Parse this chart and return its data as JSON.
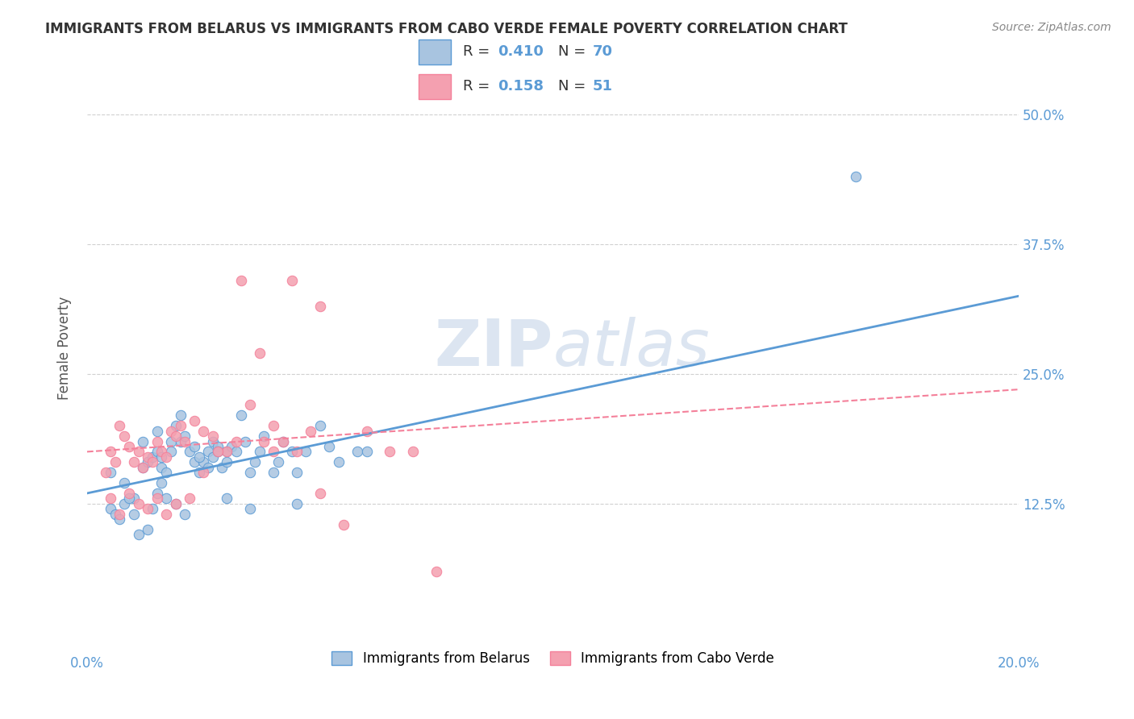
{
  "title": "IMMIGRANTS FROM BELARUS VS IMMIGRANTS FROM CABO VERDE FEMALE POVERTY CORRELATION CHART",
  "source": "Source: ZipAtlas.com",
  "ylabel": "Female Poverty",
  "ytick_labels": [
    "12.5%",
    "25.0%",
    "37.5%",
    "50.0%"
  ],
  "ytick_values": [
    0.125,
    0.25,
    0.375,
    0.5
  ],
  "xlim": [
    0.0,
    0.2
  ],
  "ylim": [
    0.0,
    0.55
  ],
  "legend_entries": [
    {
      "label": "Immigrants from Belarus",
      "R": "0.410",
      "N": "70"
    },
    {
      "label": "Immigrants from Cabo Verde",
      "R": "0.158",
      "N": "51"
    }
  ],
  "blue_scatter_x": [
    0.005,
    0.008,
    0.01,
    0.012,
    0.012,
    0.013,
    0.014,
    0.015,
    0.015,
    0.016,
    0.016,
    0.016,
    0.017,
    0.018,
    0.018,
    0.019,
    0.02,
    0.02,
    0.021,
    0.022,
    0.023,
    0.023,
    0.024,
    0.025,
    0.026,
    0.027,
    0.027,
    0.028,
    0.029,
    0.03,
    0.03,
    0.031,
    0.032,
    0.033,
    0.034,
    0.035,
    0.036,
    0.037,
    0.038,
    0.04,
    0.041,
    0.042,
    0.044,
    0.045,
    0.047,
    0.05,
    0.052,
    0.054,
    0.058,
    0.06,
    0.005,
    0.006,
    0.007,
    0.008,
    0.009,
    0.01,
    0.011,
    0.013,
    0.014,
    0.015,
    0.017,
    0.019,
    0.021,
    0.024,
    0.026,
    0.028,
    0.03,
    0.035,
    0.045,
    0.165
  ],
  "blue_scatter_y": [
    0.155,
    0.145,
    0.13,
    0.16,
    0.185,
    0.165,
    0.17,
    0.175,
    0.195,
    0.145,
    0.16,
    0.17,
    0.155,
    0.185,
    0.175,
    0.2,
    0.21,
    0.185,
    0.19,
    0.175,
    0.165,
    0.18,
    0.155,
    0.165,
    0.175,
    0.17,
    0.185,
    0.18,
    0.16,
    0.165,
    0.175,
    0.18,
    0.175,
    0.21,
    0.185,
    0.155,
    0.165,
    0.175,
    0.19,
    0.155,
    0.165,
    0.185,
    0.175,
    0.155,
    0.175,
    0.2,
    0.18,
    0.165,
    0.175,
    0.175,
    0.12,
    0.115,
    0.11,
    0.125,
    0.13,
    0.115,
    0.095,
    0.1,
    0.12,
    0.135,
    0.13,
    0.125,
    0.115,
    0.17,
    0.16,
    0.175,
    0.13,
    0.12,
    0.125,
    0.44
  ],
  "pink_scatter_x": [
    0.004,
    0.005,
    0.006,
    0.007,
    0.008,
    0.009,
    0.01,
    0.011,
    0.012,
    0.013,
    0.014,
    0.015,
    0.016,
    0.017,
    0.018,
    0.019,
    0.02,
    0.021,
    0.023,
    0.025,
    0.027,
    0.03,
    0.032,
    0.035,
    0.038,
    0.04,
    0.042,
    0.045,
    0.048,
    0.05,
    0.055,
    0.005,
    0.007,
    0.009,
    0.011,
    0.013,
    0.015,
    0.017,
    0.019,
    0.022,
    0.025,
    0.028,
    0.033,
    0.037,
    0.04,
    0.044,
    0.05,
    0.06,
    0.065,
    0.07,
    0.075
  ],
  "pink_scatter_y": [
    0.155,
    0.175,
    0.165,
    0.2,
    0.19,
    0.18,
    0.165,
    0.175,
    0.16,
    0.17,
    0.165,
    0.185,
    0.175,
    0.17,
    0.195,
    0.19,
    0.2,
    0.185,
    0.205,
    0.195,
    0.19,
    0.175,
    0.185,
    0.22,
    0.185,
    0.175,
    0.185,
    0.175,
    0.195,
    0.135,
    0.105,
    0.13,
    0.115,
    0.135,
    0.125,
    0.12,
    0.13,
    0.115,
    0.125,
    0.13,
    0.155,
    0.175,
    0.34,
    0.27,
    0.2,
    0.34,
    0.315,
    0.195,
    0.175,
    0.175,
    0.06
  ],
  "blue_line_x": [
    0.0,
    0.2
  ],
  "blue_line_y": [
    0.135,
    0.325
  ],
  "pink_line_x": [
    0.0,
    0.2
  ],
  "pink_line_y": [
    0.175,
    0.235
  ],
  "blue_color": "#5b9bd5",
  "pink_color": "#f4809a",
  "blue_fill": "#a8c4e0",
  "pink_fill": "#f4a0b0",
  "watermark_zip": "ZIP",
  "watermark_atlas": "atlas",
  "background_color": "#ffffff",
  "grid_color": "#d0d0d0",
  "label_color": "#5b9bd5"
}
